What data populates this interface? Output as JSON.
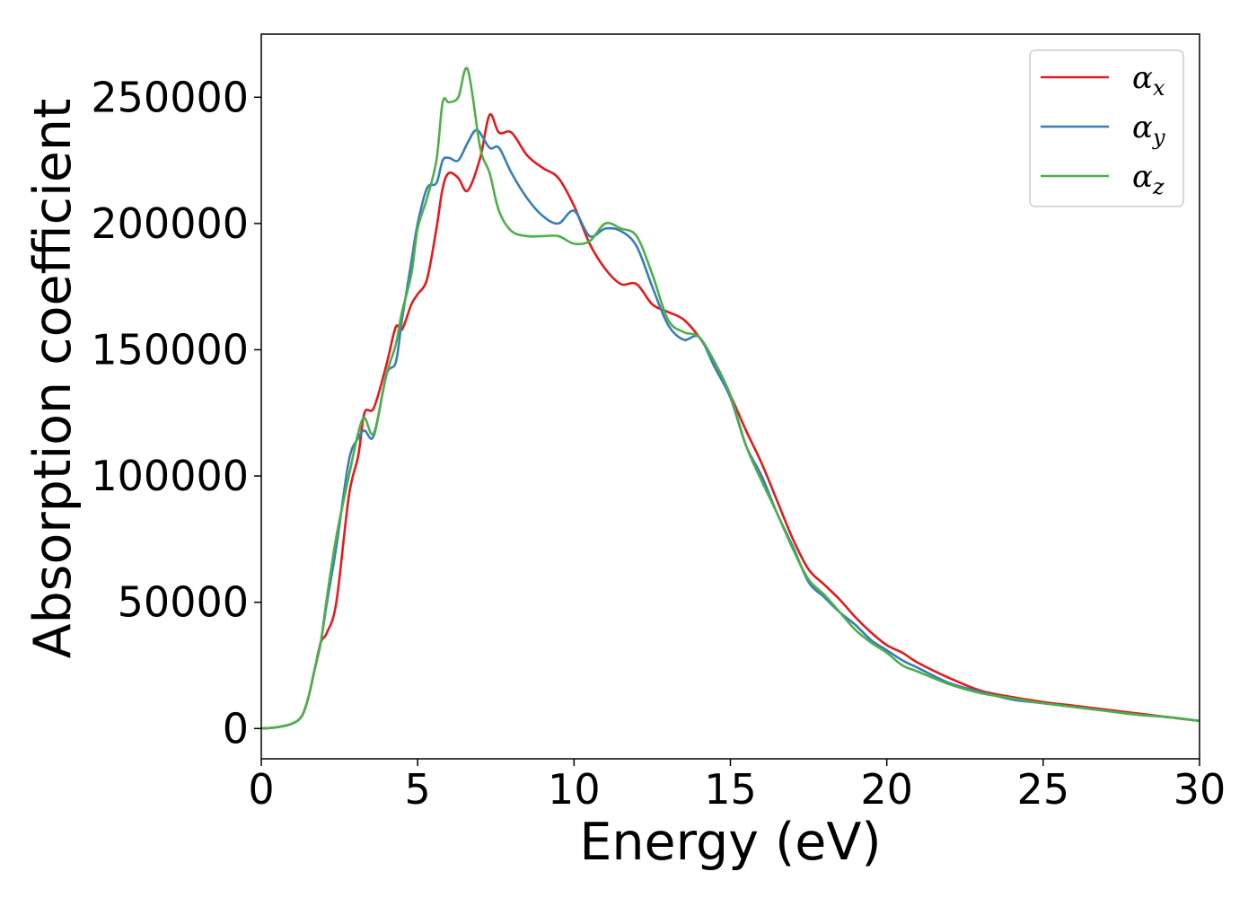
{
  "chart_data": {
    "type": "line",
    "title": "",
    "xlabel": "Energy (eV)",
    "ylabel": "Absorption coefficient",
    "xlim": [
      0,
      30
    ],
    "ylim": [
      -12000,
      275000
    ],
    "xticks": [
      0,
      5,
      10,
      15,
      20,
      25,
      30
    ],
    "yticks": [
      0,
      50000,
      100000,
      150000,
      200000,
      250000
    ],
    "grid": false,
    "legend_position": "top-right",
    "series": [
      {
        "name": "α_x",
        "label_base": "α",
        "label_sub": "x",
        "color": "#e41a1c",
        "x": [
          0,
          0.5,
          1.0,
          1.3,
          1.5,
          1.7,
          1.9,
          2.1,
          2.4,
          2.8,
          3.1,
          3.3,
          3.6,
          4.0,
          4.3,
          4.5,
          4.8,
          5.0,
          5.3,
          5.6,
          5.8,
          6.0,
          6.3,
          6.6,
          7.0,
          7.3,
          7.6,
          8.0,
          8.5,
          9.0,
          9.5,
          10.0,
          10.5,
          11.0,
          11.5,
          12.0,
          12.5,
          13.0,
          13.5,
          14.0,
          14.5,
          15.0,
          15.5,
          16.0,
          16.5,
          17.0,
          17.5,
          18.0,
          18.5,
          19.0,
          19.5,
          20.0,
          20.5,
          21.0,
          22.0,
          23.0,
          24.0,
          25.0,
          26.0,
          27.0,
          28.0,
          29.0,
          30.0
        ],
        "y": [
          0,
          500,
          2000,
          5000,
          12000,
          23000,
          34000,
          38000,
          50000,
          92000,
          108000,
          125000,
          127000,
          144000,
          159000,
          158000,
          168000,
          172000,
          178000,
          198000,
          214000,
          220000,
          218000,
          213000,
          226000,
          243000,
          236000,
          236000,
          227000,
          222000,
          218000,
          207000,
          192000,
          182000,
          176000,
          176000,
          168000,
          165000,
          162000,
          155000,
          145000,
          132000,
          118000,
          105000,
          90000,
          75000,
          63000,
          57000,
          51000,
          44000,
          38000,
          33000,
          30000,
          26000,
          20000,
          15000,
          12500,
          10500,
          9000,
          7500,
          6000,
          4500,
          3000
        ]
      },
      {
        "name": "α_y",
        "label_base": "α",
        "label_sub": "y",
        "color": "#377eb8",
        "x": [
          0,
          0.5,
          1.0,
          1.3,
          1.5,
          1.7,
          1.9,
          2.1,
          2.4,
          2.8,
          3.1,
          3.3,
          3.6,
          4.0,
          4.3,
          4.5,
          4.8,
          5.0,
          5.3,
          5.6,
          5.8,
          6.0,
          6.3,
          6.6,
          6.9,
          7.3,
          7.6,
          8.0,
          8.5,
          9.0,
          9.5,
          10.0,
          10.5,
          11.0,
          11.5,
          12.0,
          12.5,
          13.0,
          13.5,
          14.0,
          14.5,
          15.0,
          15.5,
          16.0,
          16.5,
          17.0,
          17.5,
          18.0,
          18.5,
          19.0,
          19.5,
          20.0,
          20.5,
          21.0,
          22.0,
          23.0,
          24.0,
          25.0,
          26.0,
          27.0,
          28.0,
          29.0,
          30.0
        ],
        "y": [
          0,
          500,
          2000,
          5000,
          12000,
          23000,
          34000,
          50000,
          72000,
          106000,
          115000,
          118000,
          116000,
          140000,
          145000,
          162000,
          185000,
          200000,
          214000,
          216000,
          225000,
          226000,
          225000,
          232000,
          237000,
          230000,
          230000,
          220000,
          210000,
          203000,
          200000,
          205000,
          195000,
          198000,
          197000,
          191000,
          175000,
          160000,
          154000,
          155000,
          143000,
          131000,
          112000,
          100000,
          85000,
          72000,
          58000,
          52000,
          46000,
          41000,
          35000,
          31000,
          27000,
          24000,
          18000,
          14500,
          11500,
          10000,
          8500,
          7000,
          5500,
          4500,
          3000
        ]
      },
      {
        "name": "α_z",
        "label_base": "α",
        "label_sub": "z",
        "color": "#4daf4a",
        "x": [
          0,
          0.5,
          1.0,
          1.3,
          1.5,
          1.7,
          1.9,
          2.1,
          2.4,
          2.8,
          3.1,
          3.3,
          3.6,
          4.0,
          4.3,
          4.5,
          4.8,
          5.0,
          5.3,
          5.6,
          5.8,
          6.0,
          6.3,
          6.6,
          7.0,
          7.3,
          7.6,
          8.0,
          8.5,
          9.0,
          9.5,
          10.0,
          10.5,
          11.0,
          11.5,
          12.0,
          12.5,
          13.0,
          13.5,
          14.0,
          14.5,
          15.0,
          15.5,
          16.0,
          16.5,
          17.0,
          17.5,
          18.0,
          18.5,
          19.0,
          19.5,
          20.0,
          20.5,
          21.0,
          22.0,
          23.0,
          24.0,
          25.0,
          26.0,
          27.0,
          28.0,
          29.0,
          30.0
        ],
        "y": [
          0,
          500,
          2000,
          5000,
          12000,
          23000,
          34000,
          52000,
          76000,
          100000,
          117000,
          123000,
          117000,
          140000,
          152000,
          165000,
          180000,
          198000,
          210000,
          225000,
          248000,
          248000,
          250000,
          261000,
          230000,
          220000,
          205000,
          197000,
          195000,
          195000,
          195000,
          192000,
          193000,
          200000,
          198000,
          195000,
          180000,
          162000,
          157000,
          155000,
          145000,
          132000,
          112000,
          98000,
          85000,
          71000,
          59000,
          53000,
          46000,
          39000,
          34000,
          30000,
          25000,
          22500,
          17500,
          14000,
          12000,
          10000,
          8500,
          7000,
          5500,
          4500,
          3000
        ]
      }
    ]
  }
}
